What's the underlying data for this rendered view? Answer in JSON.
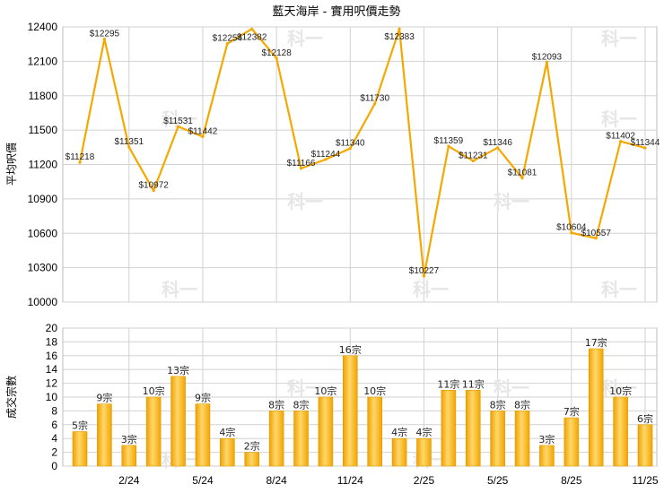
{
  "chart_data": [
    {
      "type": "line",
      "title": "藍天海岸 - 實用呎價走勢",
      "ylabel": "平均呎價",
      "ylim": [
        10000,
        12400
      ],
      "yticks": [
        10000,
        10300,
        10600,
        10900,
        11200,
        11500,
        11800,
        12100,
        12400
      ],
      "grid": true,
      "color": "#f5a800",
      "values": [
        11218,
        12295,
        11351,
        10972,
        11531,
        11442,
        12254,
        12382,
        12128,
        11166,
        11244,
        11340,
        11730,
        12383,
        10227,
        11359,
        11231,
        11346,
        11081,
        12093,
        10604,
        10557,
        11402,
        11344
      ],
      "value_labels": [
        "$11218",
        "$12295",
        "$11351",
        "$10972",
        "$11531",
        "$11442",
        "$12254",
        "$12382",
        "$12128",
        "$11166",
        "$11244",
        "$11340",
        "$11730",
        "$12383",
        "$10227",
        "$11359",
        "$11231",
        "$11346",
        "$11081",
        "$12093",
        "$10604",
        "$10557",
        "$11402",
        "$11344"
      ]
    },
    {
      "type": "bar",
      "ylabel": "成交宗數",
      "ylim": [
        0,
        20
      ],
      "yticks": [
        0,
        2,
        4,
        6,
        8,
        10,
        12,
        14,
        16,
        18,
        20
      ],
      "grid": true,
      "color": "#f5b21c",
      "values": [
        5,
        9,
        3,
        10,
        13,
        9,
        4,
        2,
        8,
        8,
        10,
        16,
        10,
        4,
        4,
        11,
        11,
        8,
        8,
        3,
        7,
        17,
        10,
        6
      ],
      "value_labels": [
        "5宗",
        "9宗",
        "3宗",
        "10宗",
        "13宗",
        "9宗",
        "4宗",
        "2宗",
        "8宗",
        "8宗",
        "10宗",
        "16宗",
        "10宗",
        "4宗",
        "4宗",
        "11宗",
        "11宗",
        "8宗",
        "8宗",
        "3宗",
        "7宗",
        "17宗",
        "10宗",
        "6宗"
      ]
    }
  ],
  "x_tick_labels": [
    {
      "index": 2,
      "label": "2/24"
    },
    {
      "index": 5,
      "label": "5/24"
    },
    {
      "index": 8,
      "label": "8/24"
    },
    {
      "index": 11,
      "label": "11/24"
    },
    {
      "index": 14,
      "label": "2/25"
    },
    {
      "index": 17,
      "label": "5/25"
    },
    {
      "index": 20,
      "label": "8/25"
    },
    {
      "index": 23,
      "label": "11/25"
    }
  ],
  "watermark": "科一"
}
